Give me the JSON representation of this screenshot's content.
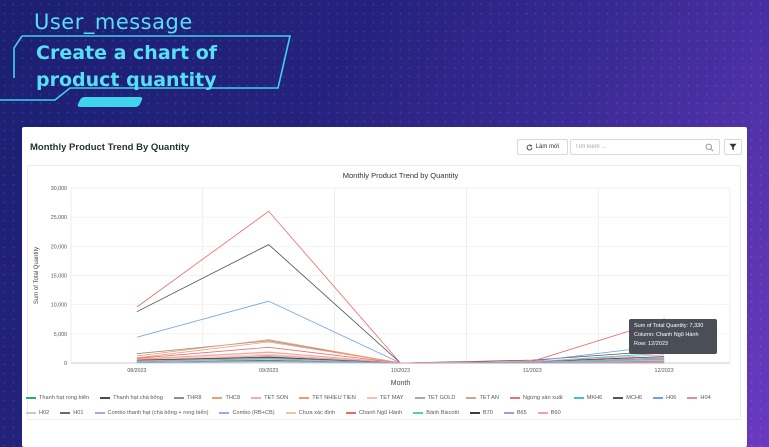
{
  "user_message": {
    "tag": "User_message",
    "text": "Create a chart of product quantity"
  },
  "panel": {
    "title": "Monthly Product Trend By Quantity",
    "refresh_label": "Làm mới",
    "search_placeholder": "Tìm kiếm ...",
    "search_value": ""
  },
  "icons": {
    "refresh": "refresh-icon",
    "search": "search-icon",
    "filter": "filter-icon"
  },
  "colors": {
    "accent": "#55e0f5",
    "tooltip_bg": "#4a4f57"
  },
  "chart_data": {
    "type": "line",
    "title": "Monthly Product Trend by Quantity",
    "xlabel": "Month",
    "ylabel": "Sum of Total Quantity",
    "categories": [
      "08/2023",
      "09/2023",
      "10/2023",
      "11/2023",
      "12/2023"
    ],
    "ylim": [
      0,
      30000
    ],
    "yticks": [
      "0",
      "5,000",
      "10,000",
      "15,000",
      "20,000",
      "25,000",
      "30,000"
    ],
    "grid": true,
    "legend_position": "bottom",
    "series": [
      {
        "name": "Thanh hạt rong biển",
        "color": "#2aa58a",
        "values": [
          300,
          900,
          0,
          100,
          350
        ]
      },
      {
        "name": "Thanh hạt chà bông",
        "color": "#4a4a4a",
        "values": [
          8800,
          20300,
          0,
          200,
          550
        ]
      },
      {
        "name": "THR8",
        "color": "#9c8a8a",
        "values": [
          1600,
          3800,
          0,
          150,
          700
        ]
      },
      {
        "name": "THC8",
        "color": "#e5a27a",
        "values": [
          900,
          3600,
          0,
          80,
          600
        ]
      },
      {
        "name": "TET SON",
        "color": "#f0b0b0",
        "values": [
          700,
          1900,
          0,
          50,
          500
        ]
      },
      {
        "name": "TET NHIEU TIEN",
        "color": "#f09a6a",
        "values": [
          1200,
          4000,
          0,
          60,
          400
        ]
      },
      {
        "name": "TET MAY",
        "color": "#f3c3b0",
        "values": [
          500,
          1500,
          0,
          40,
          300
        ]
      },
      {
        "name": "TET GOLD",
        "color": "#a8a8a8",
        "values": [
          300,
          1100,
          0,
          30,
          250
        ]
      },
      {
        "name": "TET AN",
        "color": "#c9a98a",
        "values": [
          250,
          900,
          0,
          20,
          200
        ]
      },
      {
        "name": "Ngừng sản xuất",
        "color": "#f07070",
        "values": [
          800,
          2700,
          0,
          0,
          0
        ]
      },
      {
        "name": "MKH6",
        "color": "#40c4c0",
        "values": [
          200,
          700,
          0,
          200,
          1700
        ]
      },
      {
        "name": "MCH6",
        "color": "#555555",
        "values": [
          150,
          500,
          0,
          500,
          2100
        ]
      },
      {
        "name": "H06",
        "color": "#6e9ee8",
        "values": [
          4400,
          10600,
          0,
          300,
          3000
        ]
      },
      {
        "name": "H04",
        "color": "#e08ab8",
        "values": [
          350,
          1300,
          0,
          150,
          800
        ]
      },
      {
        "name": "H02",
        "color": "#c8c8c8",
        "values": [
          200,
          600,
          0,
          100,
          500
        ]
      },
      {
        "name": "H01",
        "color": "#6a6a6a",
        "values": [
          100,
          400,
          0,
          80,
          300
        ]
      },
      {
        "name": "Combo thanh hạt (chà bông + rong biển)",
        "color": "#b9a4d8",
        "values": [
          50,
          200,
          0,
          40,
          150
        ]
      },
      {
        "name": "Combo (RB+CB)",
        "color": "#8fb0e0",
        "values": [
          80,
          300,
          0,
          60,
          250
        ]
      },
      {
        "name": "Chưa xác định",
        "color": "#e8c8a0",
        "values": [
          400,
          1200,
          0,
          100,
          500
        ]
      },
      {
        "name": "Chanh Ngũ Hành",
        "color": "#ee6a6a",
        "values": [
          9600,
          26000,
          0,
          300,
          7330
        ]
      },
      {
        "name": "Bánh Biscotti",
        "color": "#5ec8b0",
        "values": [
          100,
          350,
          0,
          50,
          600
        ]
      },
      {
        "name": "B70",
        "color": "#3c3c3c",
        "values": [
          500,
          1000,
          0,
          200,
          1100
        ]
      },
      {
        "name": "B65",
        "color": "#a79ad8",
        "values": [
          250,
          800,
          0,
          150,
          900
        ]
      },
      {
        "name": "B60",
        "color": "#f4a0a0",
        "values": [
          600,
          1800,
          0,
          250,
          1400
        ]
      }
    ],
    "tooltip": {
      "line1": "Sum of Total Quantity: 7,330",
      "line2": "Column: Chanh Ngũ Hành",
      "line3": "Row: 12/2023"
    }
  }
}
